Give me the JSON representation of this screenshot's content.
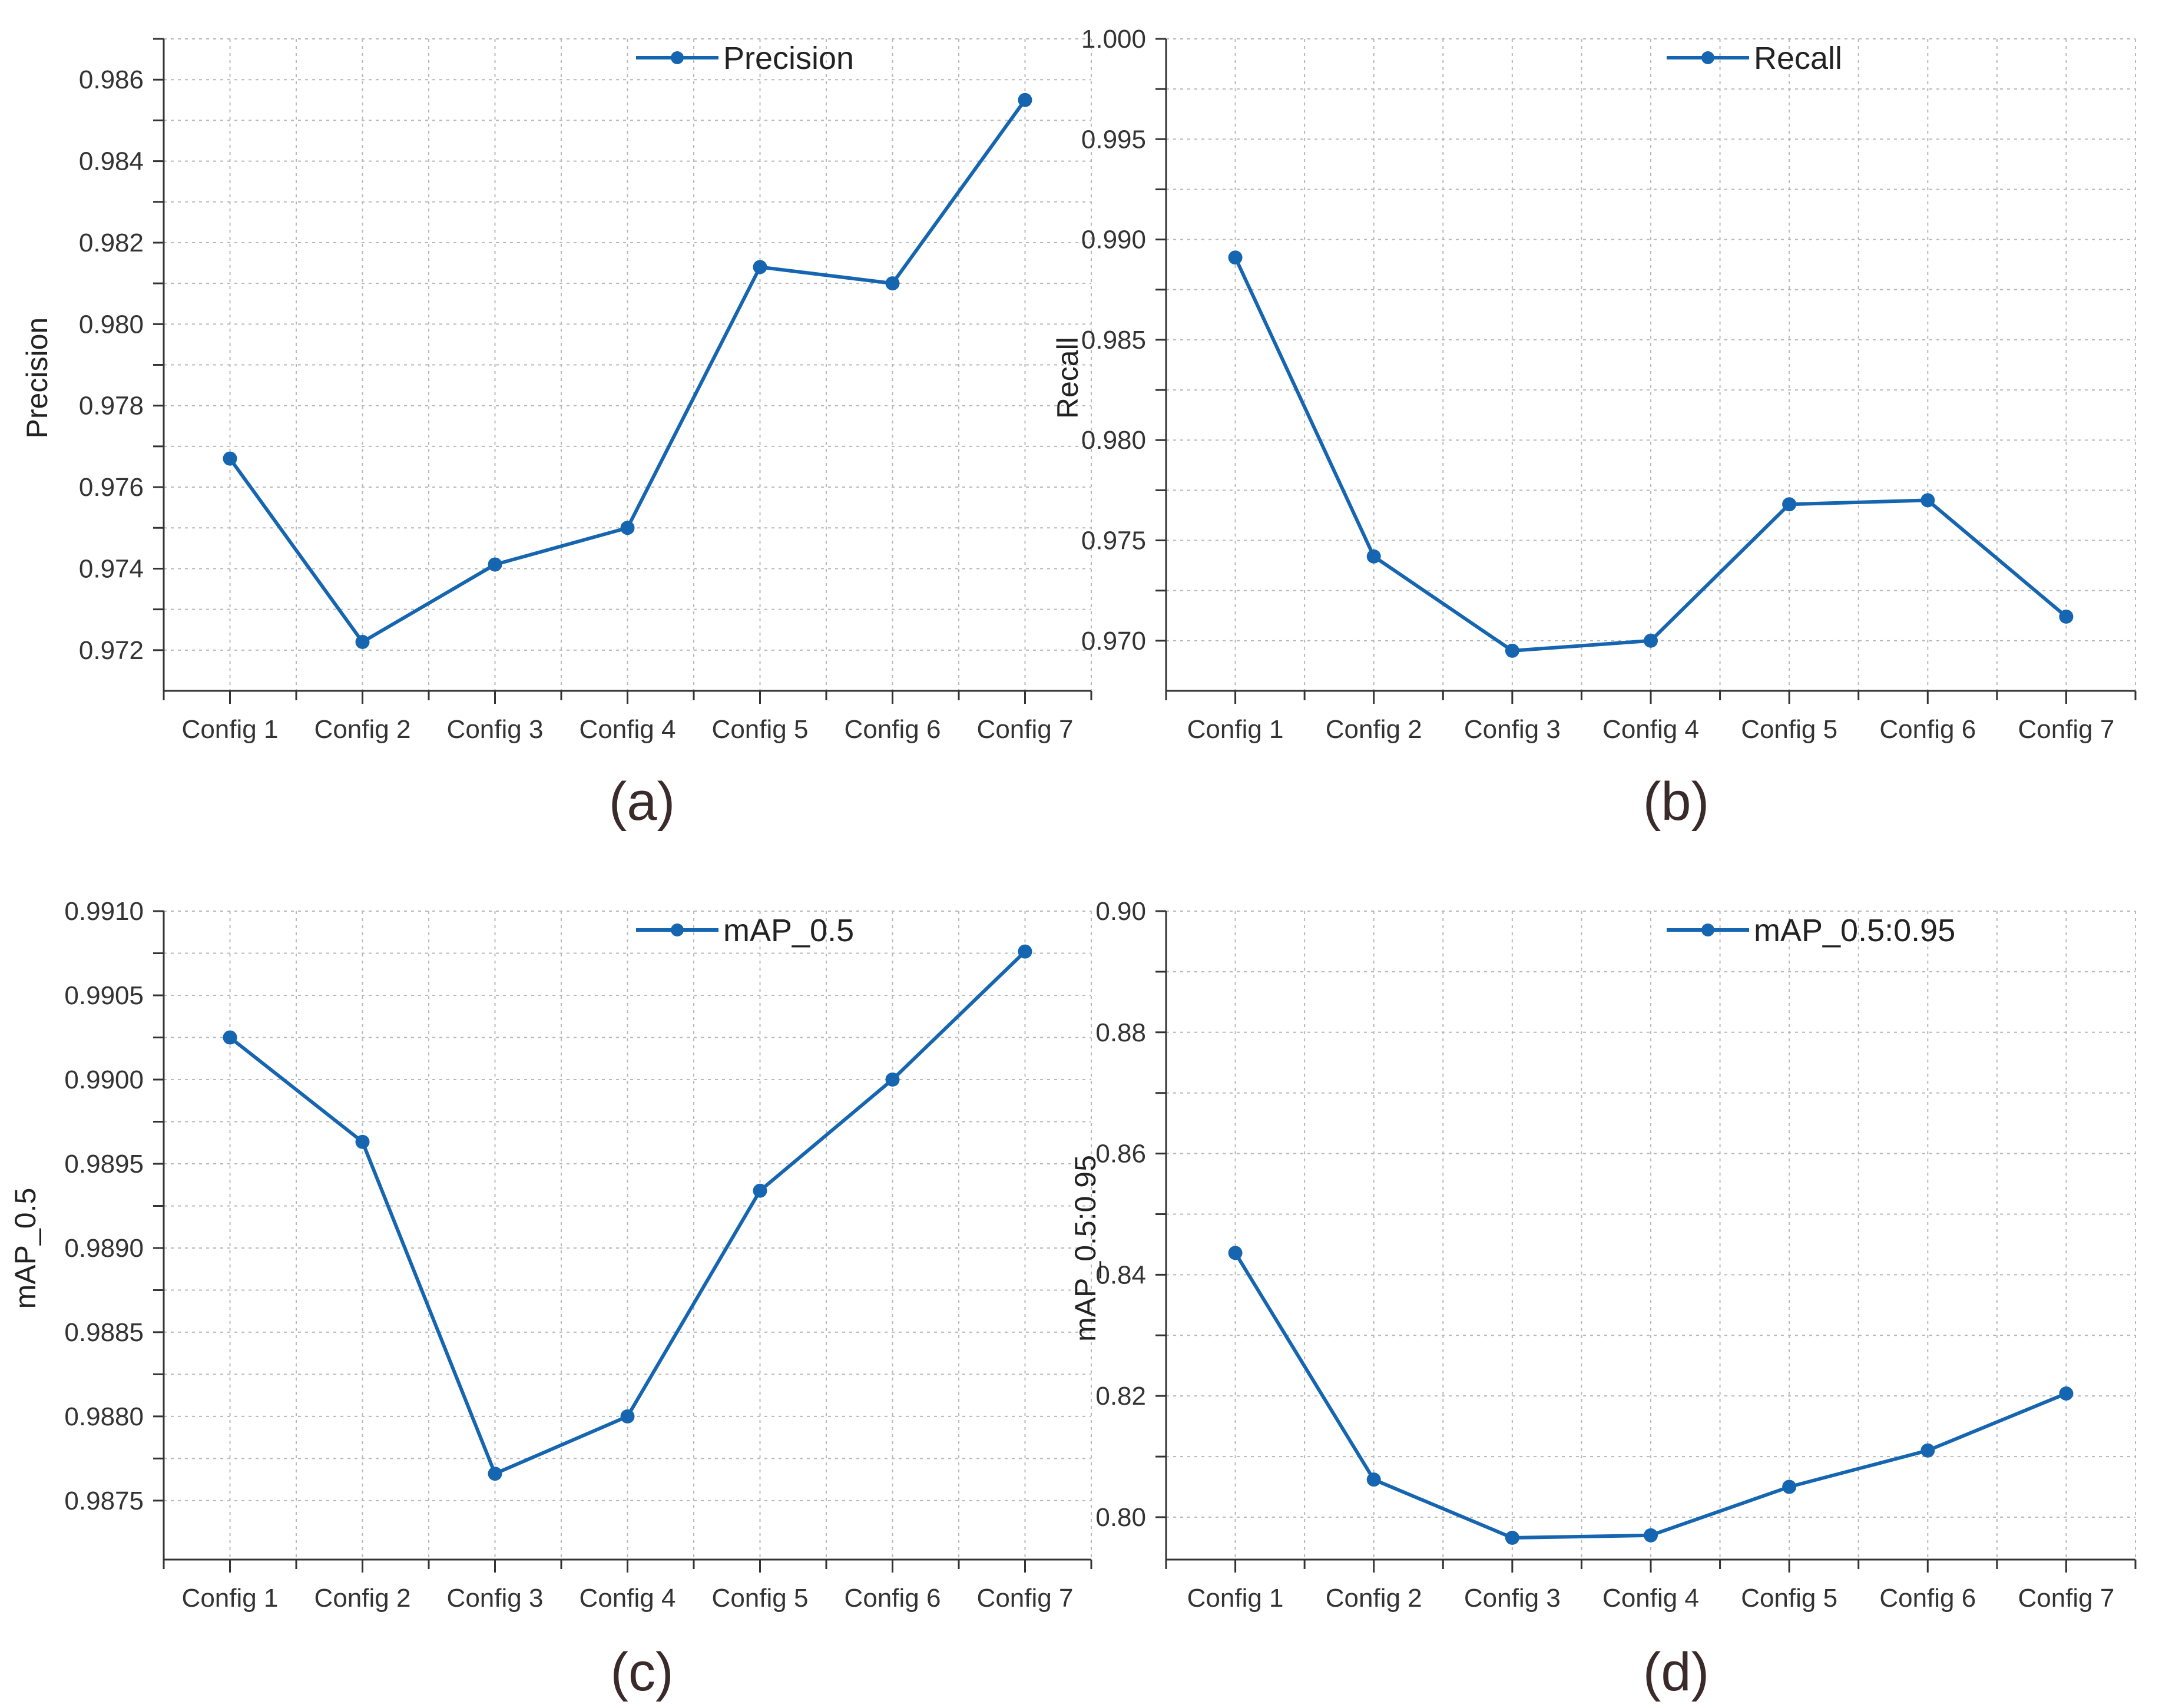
{
  "figure": {
    "colors": {
      "series": "#1565b0",
      "grid": "#b8b8b8",
      "axis": "#333333"
    },
    "marker_icon": "circle-marker",
    "chart_data": [
      {
        "type": "line",
        "caption": "(a)",
        "title": "",
        "ylabel": "Precision",
        "xlabel": "",
        "categories": [
          "Config 1",
          "Config 2",
          "Config 3",
          "Config 4",
          "Config 5",
          "Config 6",
          "Config 7"
        ],
        "series": [
          {
            "name": "Precision",
            "values": [
              0.9767,
              0.9722,
              0.9741,
              0.975,
              0.9814,
              0.981,
              0.9855
            ]
          }
        ],
        "ylim": [
          0.971,
          0.987
        ],
        "yticks": [
          0.972,
          0.974,
          0.976,
          0.978,
          0.98,
          0.982,
          0.984,
          0.986
        ],
        "ytick_labels": [
          "0.972",
          "0.974",
          "0.976",
          "0.978",
          "0.980",
          "0.982",
          "0.984",
          "0.986"
        ],
        "grid": true,
        "legend": "top-center"
      },
      {
        "type": "line",
        "caption": "(b)",
        "title": "",
        "ylabel": "Recall",
        "xlabel": "",
        "categories": [
          "Config 1",
          "Config 2",
          "Config 3",
          "Config 4",
          "Config 5",
          "Config 6",
          "Config 7"
        ],
        "series": [
          {
            "name": "Recall",
            "values": [
              0.9891,
              0.9742,
              0.9695,
              0.97,
              0.9768,
              0.977,
              0.9712
            ]
          }
        ],
        "ylim": [
          0.9675,
          1.0
        ],
        "yticks": [
          0.97,
          0.975,
          0.98,
          0.985,
          0.99,
          0.995,
          1.0
        ],
        "ytick_labels": [
          "0.970",
          "0.975",
          "0.980",
          "0.985",
          "0.990",
          "0.995",
          "1.000"
        ],
        "grid": true,
        "legend": "top-center"
      },
      {
        "type": "line",
        "caption": "(c)",
        "title": "",
        "ylabel": "mAP_0.5",
        "xlabel": "",
        "categories": [
          "Config 1",
          "Config 2",
          "Config 3",
          "Config 4",
          "Config 5",
          "Config 6",
          "Config 7"
        ],
        "series": [
          {
            "name": "mAP_0.5",
            "values": [
              0.99025,
              0.98963,
              0.98766,
              0.988,
              0.98934,
              0.99,
              0.99076
            ]
          }
        ],
        "ylim": [
          0.98715,
          0.991
        ],
        "yticks": [
          0.9875,
          0.988,
          0.9885,
          0.989,
          0.9895,
          0.99,
          0.9905,
          0.991
        ],
        "ytick_labels": [
          "0.9875",
          "0.9880",
          "0.9885",
          "0.9890",
          "0.9895",
          "0.9900",
          "0.9905",
          "0.9910"
        ],
        "grid": true,
        "legend": "top-center"
      },
      {
        "type": "line",
        "caption": "(d)",
        "title": "",
        "ylabel": "mAP_0.5:0.95",
        "xlabel": "",
        "categories": [
          "Config 1",
          "Config 2",
          "Config 3",
          "Config 4",
          "Config 5",
          "Config 6",
          "Config 7"
        ],
        "series": [
          {
            "name": "mAP_0.5:0.95",
            "values": [
              0.8436,
              0.8062,
              0.7966,
              0.797,
              0.805,
              0.811,
              0.8204
            ]
          }
        ],
        "ylim": [
          0.793,
          0.9
        ],
        "yticks": [
          0.8,
          0.82,
          0.84,
          0.86,
          0.88,
          0.9
        ],
        "ytick_labels": [
          "0.80",
          "0.82",
          "0.84",
          "0.86",
          "0.88",
          "0.90"
        ],
        "grid": true,
        "legend": "top-center"
      }
    ]
  }
}
